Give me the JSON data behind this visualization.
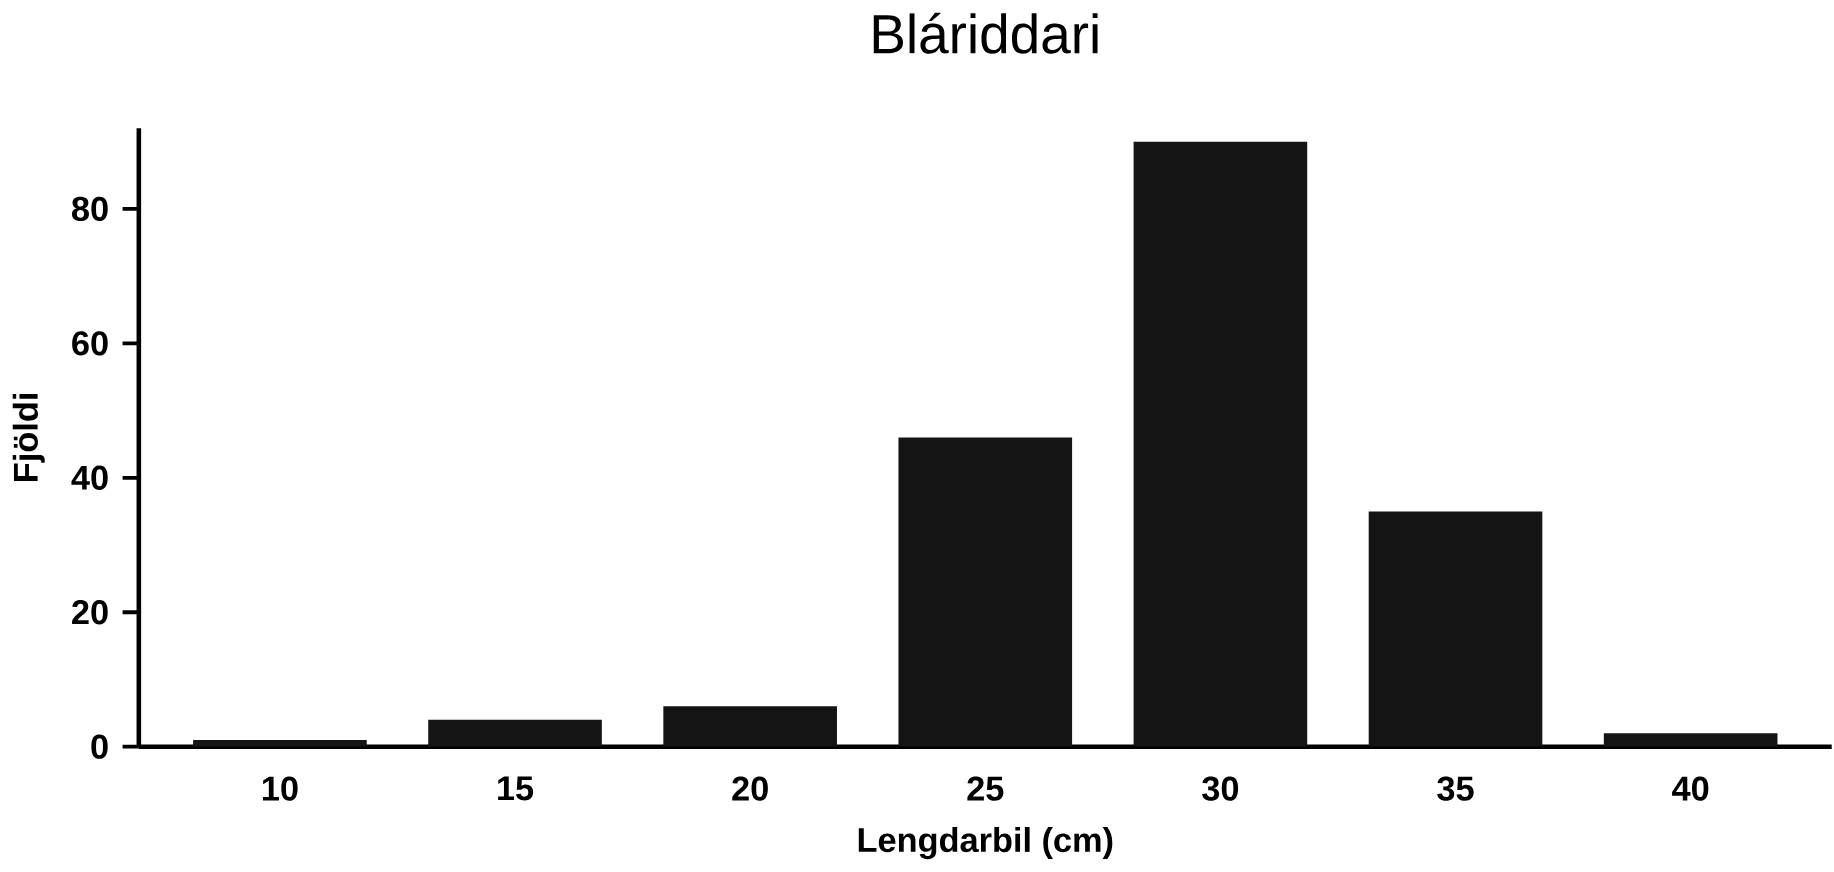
{
  "chart_data": {
    "type": "bar",
    "title": "Bláriddari",
    "xlabel": "Lengdarbil (cm)",
    "ylabel": "Fjöldi",
    "categories": [
      "10",
      "15",
      "20",
      "25",
      "30",
      "35",
      "40"
    ],
    "values": [
      1,
      4,
      6,
      46,
      90,
      35,
      2
    ],
    "color": "#141414",
    "ylim": [
      0,
      92
    ],
    "yticks": [
      0,
      20,
      40,
      60,
      80
    ],
    "grid": false
  }
}
